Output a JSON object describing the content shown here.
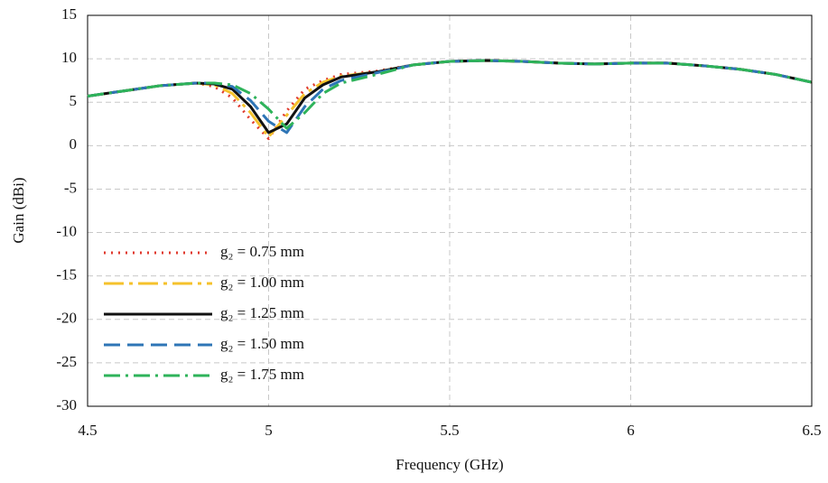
{
  "chart_data": {
    "type": "line",
    "xlabel": "Frequency (GHz)",
    "ylabel": "Gain (dBi)",
    "x": [
      4.5,
      4.6,
      4.7,
      4.8,
      4.85,
      4.9,
      4.95,
      5.0,
      5.05,
      5.1,
      5.15,
      5.2,
      5.3,
      5.4,
      5.5,
      5.6,
      5.7,
      5.8,
      5.9,
      6.0,
      6.1,
      6.2,
      6.3,
      6.4,
      6.5
    ],
    "series": [
      {
        "name": "g₂ = 0.75  mm",
        "color": "#e03a2e",
        "dash": "2,6",
        "values": [
          5.7,
          6.3,
          6.9,
          7.2,
          6.8,
          5.5,
          3.0,
          0.8,
          4.0,
          6.5,
          7.5,
          8.2,
          8.6,
          9.3,
          9.7,
          9.8,
          9.7,
          9.5,
          9.4,
          9.5,
          9.5,
          9.2,
          8.8,
          8.2,
          7.3
        ]
      },
      {
        "name": "g₂ = 1.00  mm",
        "color": "#f5c22b",
        "dash": "22,6,4,6",
        "values": [
          5.7,
          6.3,
          6.9,
          7.2,
          7.0,
          6.0,
          3.8,
          1.0,
          3.5,
          6.0,
          7.3,
          8.0,
          8.5,
          9.3,
          9.7,
          9.8,
          9.7,
          9.5,
          9.4,
          9.5,
          9.5,
          9.2,
          8.8,
          8.2,
          7.3
        ]
      },
      {
        "name": "g₂ = 1.25  mm",
        "color": "#111111",
        "dash": "none",
        "values": [
          5.7,
          6.3,
          6.9,
          7.2,
          7.1,
          6.5,
          4.5,
          1.5,
          2.5,
          5.5,
          7.0,
          7.9,
          8.5,
          9.3,
          9.7,
          9.8,
          9.7,
          9.5,
          9.4,
          9.5,
          9.5,
          9.2,
          8.8,
          8.2,
          7.3
        ]
      },
      {
        "name": "g₂ = 1.50  mm",
        "color": "#2e75b6",
        "dash": "18,8",
        "values": [
          5.7,
          6.3,
          6.9,
          7.2,
          7.2,
          6.8,
          5.2,
          2.8,
          1.5,
          4.5,
          6.5,
          7.5,
          8.4,
          9.3,
          9.7,
          9.8,
          9.7,
          9.5,
          9.4,
          9.5,
          9.5,
          9.2,
          8.8,
          8.2,
          7.3
        ]
      },
      {
        "name": "g₂ = 1.75  mm",
        "color": "#2eb35a",
        "dash": "18,6,3,6",
        "values": [
          5.7,
          6.3,
          6.9,
          7.2,
          7.2,
          7.0,
          6.0,
          4.2,
          2.0,
          3.8,
          6.0,
          7.2,
          8.2,
          9.3,
          9.7,
          9.8,
          9.7,
          9.5,
          9.4,
          9.5,
          9.5,
          9.2,
          8.8,
          8.2,
          7.3
        ]
      }
    ],
    "xlim": [
      4.5,
      6.5
    ],
    "xticks": [
      4.5,
      5,
      5.5,
      6,
      6.5
    ],
    "ylim": [
      -30,
      15
    ],
    "yticks": [
      -30,
      -25,
      -20,
      -15,
      -10,
      -5,
      0,
      5,
      10,
      15
    ],
    "grid": true
  }
}
